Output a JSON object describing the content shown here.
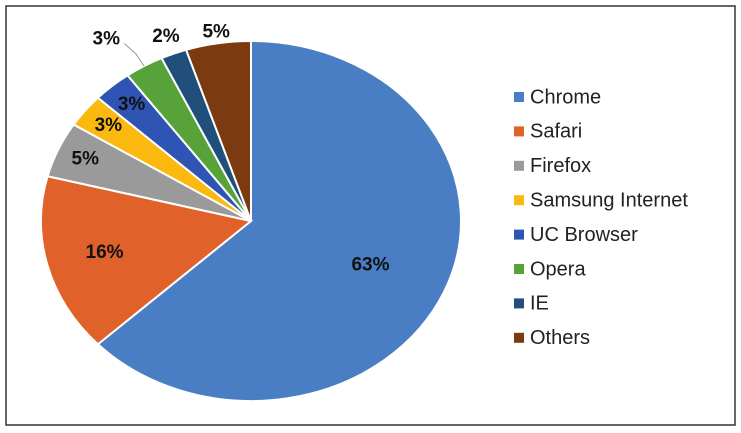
{
  "chart_data": {
    "type": "pie",
    "categories": [
      "Chrome",
      "Safari",
      "Firefox",
      "Samsung Internet",
      "UC Browser",
      "Opera",
      "IE",
      "Others"
    ],
    "values": [
      63,
      16,
      5,
      3,
      3,
      3,
      2,
      5
    ],
    "value_labels": [
      "63%",
      "16%",
      "5%",
      "3%",
      "3%",
      "3%",
      "2%",
      "5%"
    ],
    "colors": [
      "#4a7ec4",
      "#e0622a",
      "#9a9a9a",
      "#fbb80f",
      "#2e54b4",
      "#58a23a",
      "#1f4f7a",
      "#7c3a10"
    ],
    "legend": "right"
  }
}
